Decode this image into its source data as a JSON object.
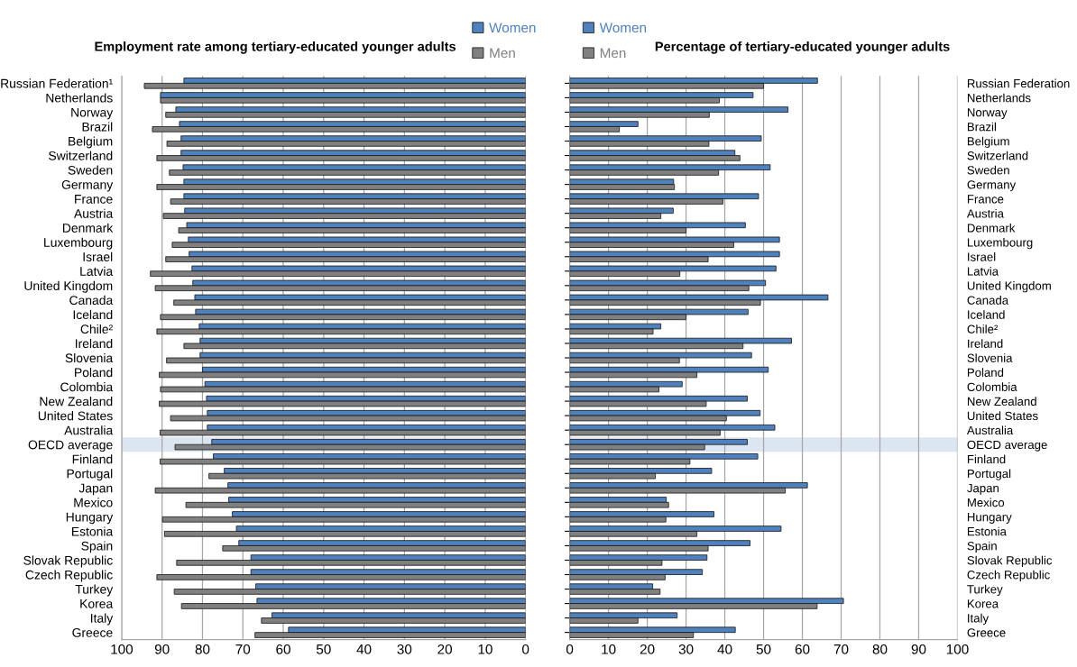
{
  "chart_data": [
    {
      "type": "bar",
      "orientation": "horizontal",
      "title": "Employment rate among tertiary-educated younger adults",
      "categories": [
        "Russian Federation¹",
        "Netherlands",
        "Norway",
        "Brazil",
        "Belgium",
        "Switzerland",
        "Sweden",
        "Germany",
        "France",
        "Austria",
        "Denmark",
        "Luxembourg",
        "Israel",
        "Latvia",
        "United Kingdom",
        "Canada",
        "Iceland",
        "Chile²",
        "Ireland",
        "Slovenia",
        "Poland",
        "Colombia",
        "New Zealand",
        "United States",
        "Australia",
        "OECD average",
        "Finland",
        "Portugal",
        "Japan",
        "Mexico",
        "Hungary",
        "Estonia",
        "Spain",
        "Slovak Republic",
        "Czech Republic",
        "Turkey",
        "Korea",
        "Italy",
        "Greece"
      ],
      "series": [
        {
          "name": "Women",
          "color": "#4f81bd",
          "values": [
            84.6,
            90.4,
            86.6,
            85.7,
            85.3,
            85.3,
            84.8,
            84.6,
            84.6,
            84.4,
            83.9,
            83.5,
            83.3,
            82.6,
            82.4,
            81.9,
            81.7,
            80.8,
            80.6,
            80.6,
            80.0,
            79.4,
            79.0,
            78.8,
            78.8,
            77.7,
            77.3,
            74.6,
            73.7,
            73.5,
            72.6,
            71.6,
            71.0,
            68.0,
            68.0,
            66.8,
            66.5,
            62.8,
            58.7
          ]
        },
        {
          "name": "Men",
          "color": "#808080",
          "values": [
            94.4,
            90.4,
            89.1,
            92.4,
            88.8,
            91.3,
            88.2,
            91.3,
            87.9,
            89.7,
            85.9,
            87.5,
            89.1,
            92.9,
            91.7,
            87.1,
            90.4,
            91.3,
            84.6,
            88.9,
            90.7,
            90.4,
            90.7,
            87.9,
            90.5,
            86.8,
            90.5,
            78.4,
            91.7,
            84.1,
            89.9,
            89.4,
            75.0,
            86.4,
            91.3,
            87.0,
            85.2,
            65.4,
            67.0
          ]
        }
      ],
      "xlim": [
        100,
        0
      ],
      "xticks": [
        100,
        90,
        80,
        70,
        60,
        50,
        40,
        30,
        20,
        10,
        0
      ],
      "grid": "x",
      "legend": "top right",
      "bands": [
        {
          "axis": "y",
          "from": "OECD average",
          "to": "OECD average",
          "color": "#dce6f2"
        }
      ]
    },
    {
      "type": "bar",
      "orientation": "horizontal",
      "title": "Percentage of tertiary-educated younger adults",
      "categories": [
        "Russian Federation",
        "Netherlands",
        "Norway",
        "Brazil",
        "Belgium",
        "Switzerland",
        "Sweden",
        "Germany",
        "France",
        "Austria",
        "Denmark",
        "Luxembourg",
        "Israel",
        "Latvia",
        "United Kingdom",
        "Canada",
        "Iceland",
        "Chile²",
        "Ireland",
        "Slovenia",
        "Poland",
        "Colombia",
        "New Zealand",
        "United States",
        "Australia",
        "OECD average",
        "Finland",
        "Portugal",
        "Japan",
        "Mexico",
        "Hungary",
        "Estonia",
        "Spain",
        "Slovak Republic",
        "Czech Republic",
        "Turkey",
        "Korea",
        "Italy",
        "Greece"
      ],
      "series": [
        {
          "name": "Women",
          "color": "#4f81bd",
          "values": [
            63.9,
            47.3,
            56.3,
            17.6,
            49.4,
            42.6,
            51.7,
            26.8,
            48.7,
            26.7,
            45.3,
            54.1,
            54.1,
            53.2,
            50.5,
            66.6,
            46.0,
            23.5,
            57.2,
            46.9,
            51.2,
            29.0,
            45.8,
            49.1,
            52.9,
            45.8,
            48.5,
            36.6,
            61.3,
            24.9,
            37.2,
            54.5,
            46.5,
            35.4,
            34.2,
            21.4,
            70.6,
            27.7,
            42.7
          ]
        },
        {
          "name": "Men",
          "color": "#808080",
          "values": [
            50.0,
            38.6,
            36.0,
            12.8,
            35.9,
            43.9,
            38.4,
            27.0,
            39.5,
            23.5,
            30.0,
            42.3,
            35.7,
            28.4,
            46.2,
            49.2,
            30.0,
            21.5,
            44.7,
            28.3,
            32.8,
            23.0,
            35.2,
            40.4,
            38.8,
            34.8,
            31.0,
            22.1,
            55.6,
            25.5,
            24.8,
            32.8,
            35.7,
            23.8,
            24.6,
            23.3,
            63.8,
            17.6,
            31.9
          ]
        }
      ],
      "xlim": [
        0,
        100
      ],
      "xticks": [
        0,
        10,
        20,
        30,
        40,
        50,
        60,
        70,
        80,
        90,
        100
      ],
      "grid": "x",
      "legend": "top left",
      "bands": [
        {
          "axis": "y",
          "from": "OECD average",
          "to": "OECD average",
          "color": "#dce6f2"
        }
      ]
    }
  ]
}
